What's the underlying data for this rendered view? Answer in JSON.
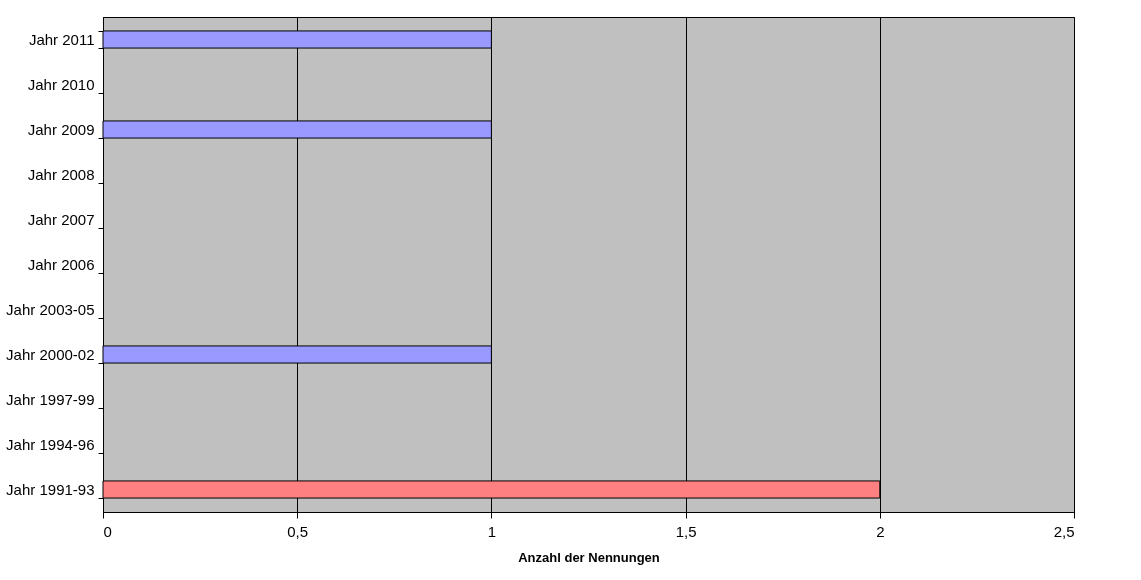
{
  "chart_data": {
    "type": "bar",
    "orientation": "horizontal",
    "xlabel": "Anzahl der Nennungen",
    "categories": [
      "Jahr 2011",
      "Jahr 2010",
      "Jahr 2009",
      "Jahr 2008",
      "Jahr 2007",
      "Jahr 2006",
      "Jahr 2003-05",
      "Jahr 2000-02",
      "Jahr 1997-99",
      "Jahr 1994-96",
      "Jahr 1991-93"
    ],
    "values": [
      1,
      0,
      1,
      0,
      0,
      0,
      0,
      1,
      0,
      0,
      2
    ],
    "colors": [
      "#9999ff",
      "#9999ff",
      "#9999ff",
      "#9999ff",
      "#9999ff",
      "#9999ff",
      "#9999ff",
      "#9999ff",
      "#9999ff",
      "#9999ff",
      "#ff8080"
    ],
    "xlim": [
      0,
      2.5
    ],
    "xticks": [
      0,
      {
        "value": 0.5,
        "label": "0,5"
      },
      1,
      {
        "value": 1.5,
        "label": "1,5"
      },
      2,
      {
        "value": 2.5,
        "label": "2,5"
      }
    ],
    "grid": "x"
  }
}
